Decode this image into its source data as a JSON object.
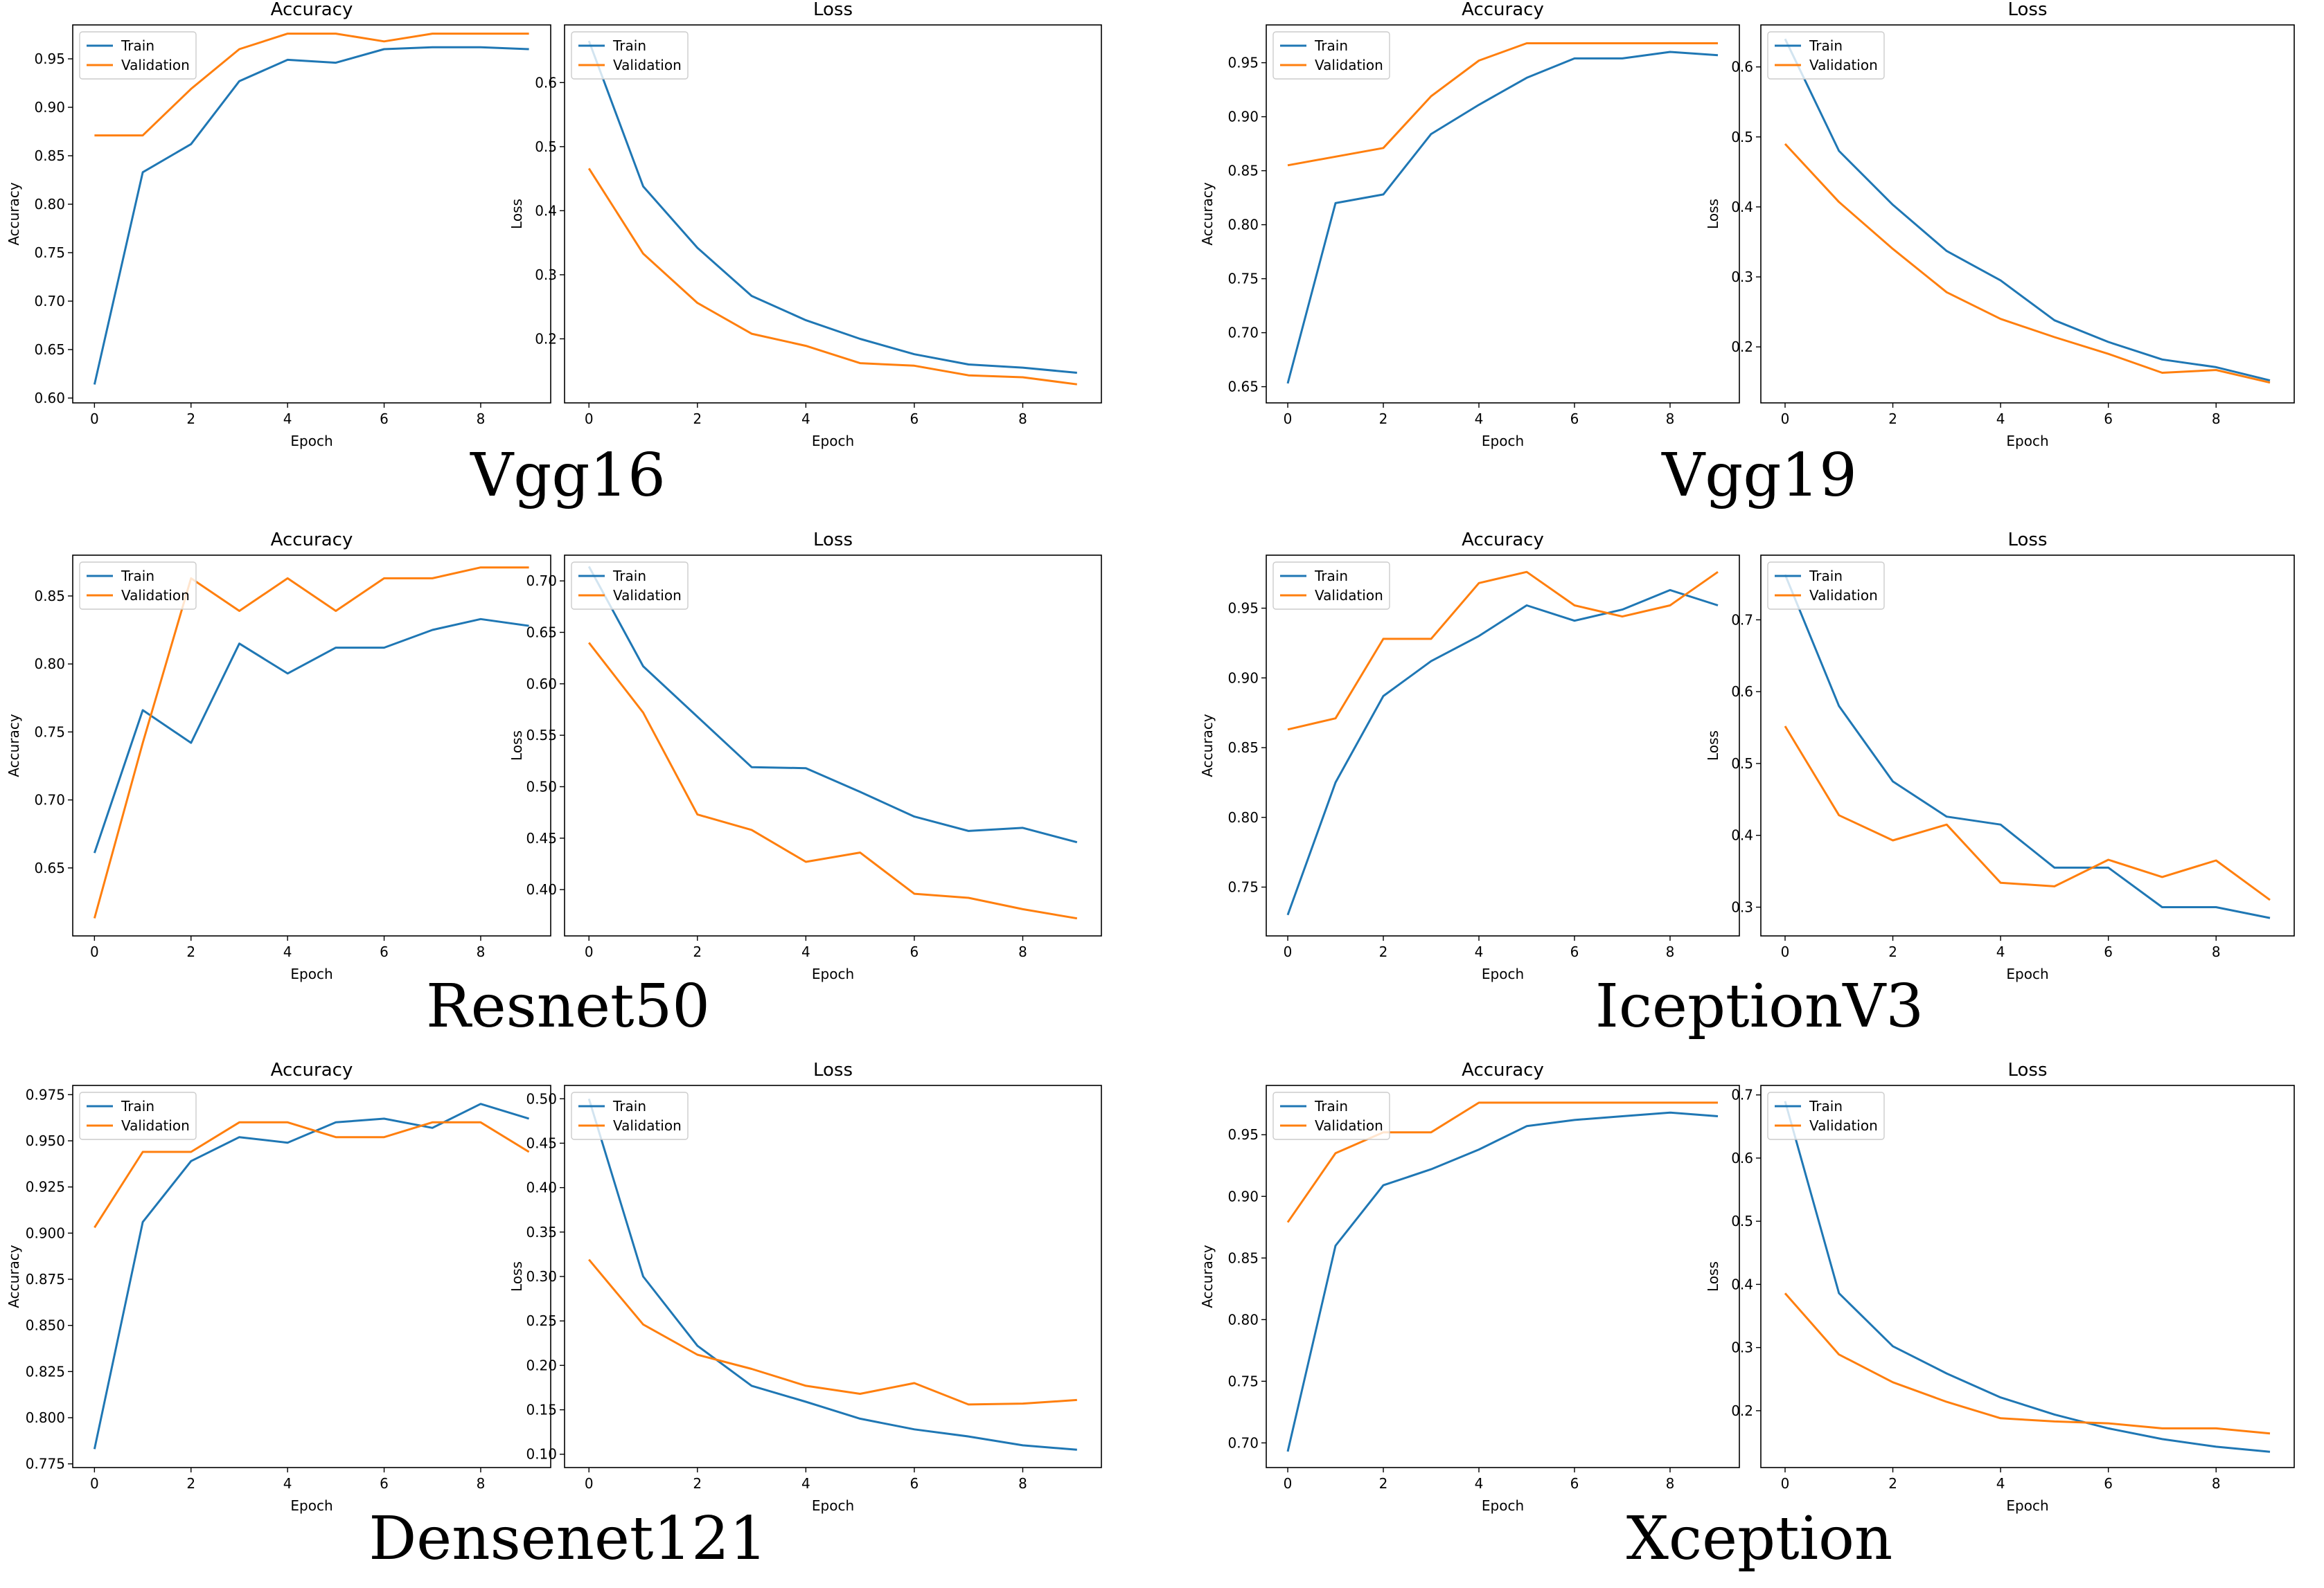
{
  "figure": {
    "model_names": [
      "Vgg16",
      "Vgg19",
      "Resnet50",
      "IceptionV3",
      "Densenet121",
      "Xception"
    ]
  },
  "chart_data": [
    {
      "type": "line",
      "model": "Vgg16",
      "title": "Accuracy",
      "xlabel": "Epoch",
      "ylabel": "Accuracy",
      "x": [
        0,
        1,
        2,
        3,
        4,
        5,
        6,
        7,
        8,
        9
      ],
      "xticks": [
        0,
        2,
        4,
        6,
        8
      ],
      "xtick_labels": [
        "0",
        "2",
        "4",
        "6",
        "8"
      ],
      "yticks": [
        0.6,
        0.65,
        0.7,
        0.75,
        0.8,
        0.85,
        0.9,
        0.95
      ],
      "ytick_labels": [
        "0.60",
        "0.65",
        "0.70",
        "0.75",
        "0.80",
        "0.85",
        "0.90",
        "0.95"
      ],
      "ylim": [
        0.595,
        0.985
      ],
      "legend_position": "top-left",
      "series": [
        {
          "name": "Train",
          "color": "#1f77b4",
          "values": [
            0.614,
            0.833,
            0.862,
            0.927,
            0.949,
            0.946,
            0.96,
            0.962,
            0.962,
            0.96
          ]
        },
        {
          "name": "Validation",
          "color": "#ff7f0e",
          "values": [
            0.871,
            0.871,
            0.919,
            0.96,
            0.976,
            0.976,
            0.968,
            0.976,
            0.976,
            0.976
          ]
        }
      ]
    },
    {
      "type": "line",
      "model": "Vgg16",
      "title": "Loss",
      "xlabel": "Epoch",
      "ylabel": "Loss",
      "x": [
        0,
        1,
        2,
        3,
        4,
        5,
        6,
        7,
        8,
        9
      ],
      "xticks": [
        0,
        2,
        4,
        6,
        8
      ],
      "xtick_labels": [
        "0",
        "2",
        "4",
        "6",
        "8"
      ],
      "yticks": [
        0.2,
        0.3,
        0.4,
        0.5,
        0.6
      ],
      "ytick_labels": [
        "0.2",
        "0.3",
        "0.4",
        "0.5",
        "0.6"
      ],
      "ylim": [
        0.1,
        0.69
      ],
      "legend_position": "top-left",
      "series": [
        {
          "name": "Train",
          "color": "#1f77b4",
          "values": [
            0.665,
            0.438,
            0.342,
            0.267,
            0.229,
            0.2,
            0.176,
            0.16,
            0.155,
            0.147
          ]
        },
        {
          "name": "Validation",
          "color": "#ff7f0e",
          "values": [
            0.466,
            0.333,
            0.256,
            0.208,
            0.189,
            0.162,
            0.158,
            0.143,
            0.14,
            0.129
          ]
        }
      ]
    },
    {
      "type": "line",
      "model": "Vgg19",
      "title": "Accuracy",
      "xlabel": "Epoch",
      "ylabel": "Accuracy",
      "x": [
        0,
        1,
        2,
        3,
        4,
        5,
        6,
        7,
        8,
        9
      ],
      "xticks": [
        0,
        2,
        4,
        6,
        8
      ],
      "xtick_labels": [
        "0",
        "2",
        "4",
        "6",
        "8"
      ],
      "yticks": [
        0.65,
        0.7,
        0.75,
        0.8,
        0.85,
        0.9,
        0.95
      ],
      "ytick_labels": [
        "0.65",
        "0.70",
        "0.75",
        "0.80",
        "0.85",
        "0.90",
        "0.95"
      ],
      "ylim": [
        0.635,
        0.985
      ],
      "legend_position": "top-left",
      "series": [
        {
          "name": "Train",
          "color": "#1f77b4",
          "values": [
            0.653,
            0.82,
            0.828,
            0.884,
            0.911,
            0.936,
            0.954,
            0.954,
            0.96,
            0.957
          ]
        },
        {
          "name": "Validation",
          "color": "#ff7f0e",
          "values": [
            0.855,
            0.863,
            0.871,
            0.919,
            0.952,
            0.968,
            0.968,
            0.968,
            0.968,
            0.968
          ]
        }
      ]
    },
    {
      "type": "line",
      "model": "Vgg19",
      "title": "Loss",
      "xlabel": "Epoch",
      "ylabel": "Loss",
      "x": [
        0,
        1,
        2,
        3,
        4,
        5,
        6,
        7,
        8,
        9
      ],
      "xticks": [
        0,
        2,
        4,
        6,
        8
      ],
      "xtick_labels": [
        "0",
        "2",
        "4",
        "6",
        "8"
      ],
      "yticks": [
        0.2,
        0.3,
        0.4,
        0.5,
        0.6
      ],
      "ytick_labels": [
        "0.2",
        "0.3",
        "0.4",
        "0.5",
        "0.6"
      ],
      "ylim": [
        0.12,
        0.66
      ],
      "legend_position": "top-left",
      "series": [
        {
          "name": "Train",
          "color": "#1f77b4",
          "values": [
            0.64,
            0.48,
            0.403,
            0.337,
            0.295,
            0.238,
            0.207,
            0.182,
            0.171,
            0.152
          ]
        },
        {
          "name": "Validation",
          "color": "#ff7f0e",
          "values": [
            0.49,
            0.407,
            0.34,
            0.278,
            0.24,
            0.214,
            0.19,
            0.163,
            0.167,
            0.149
          ]
        }
      ]
    },
    {
      "type": "line",
      "model": "Resnet50",
      "title": "Accuracy",
      "xlabel": "Epoch",
      "ylabel": "Accuracy",
      "x": [
        0,
        1,
        2,
        3,
        4,
        5,
        6,
        7,
        8,
        9
      ],
      "xticks": [
        0,
        2,
        4,
        6,
        8
      ],
      "xtick_labels": [
        "0",
        "2",
        "4",
        "6",
        "8"
      ],
      "yticks": [
        0.65,
        0.7,
        0.75,
        0.8,
        0.85
      ],
      "ytick_labels": [
        "0.65",
        "0.70",
        "0.75",
        "0.80",
        "0.85"
      ],
      "ylim": [
        0.6,
        0.88
      ],
      "legend_position": "top-left",
      "series": [
        {
          "name": "Train",
          "color": "#1f77b4",
          "values": [
            0.661,
            0.766,
            0.742,
            0.815,
            0.793,
            0.812,
            0.812,
            0.825,
            0.833,
            0.828
          ]
        },
        {
          "name": "Validation",
          "color": "#ff7f0e",
          "values": [
            0.613,
            0.742,
            0.863,
            0.839,
            0.863,
            0.839,
            0.863,
            0.863,
            0.871,
            0.871
          ]
        }
      ]
    },
    {
      "type": "line",
      "model": "Resnet50",
      "title": "Loss",
      "xlabel": "Epoch",
      "ylabel": "Loss",
      "x": [
        0,
        1,
        2,
        3,
        4,
        5,
        6,
        7,
        8,
        9
      ],
      "xticks": [
        0,
        2,
        4,
        6,
        8
      ],
      "xtick_labels": [
        "0",
        "2",
        "4",
        "6",
        "8"
      ],
      "yticks": [
        0.4,
        0.45,
        0.5,
        0.55,
        0.6,
        0.65,
        0.7
      ],
      "ytick_labels": [
        "0.40",
        "0.45",
        "0.50",
        "0.55",
        "0.60",
        "0.65",
        "0.70"
      ],
      "ylim": [
        0.355,
        0.725
      ],
      "legend_position": "top-left",
      "series": [
        {
          "name": "Train",
          "color": "#1f77b4",
          "values": [
            0.714,
            0.617,
            0.568,
            0.519,
            0.518,
            0.495,
            0.471,
            0.457,
            0.46,
            0.446
          ]
        },
        {
          "name": "Validation",
          "color": "#ff7f0e",
          "values": [
            0.64,
            0.572,
            0.473,
            0.458,
            0.427,
            0.436,
            0.396,
            0.392,
            0.381,
            0.372
          ]
        }
      ]
    },
    {
      "type": "line",
      "model": "IceptionV3",
      "title": "Accuracy",
      "xlabel": "Epoch",
      "ylabel": "Accuracy",
      "x": [
        0,
        1,
        2,
        3,
        4,
        5,
        6,
        7,
        8,
        9
      ],
      "xticks": [
        0,
        2,
        4,
        6,
        8
      ],
      "xtick_labels": [
        "0",
        "2",
        "4",
        "6",
        "8"
      ],
      "yticks": [
        0.75,
        0.8,
        0.85,
        0.9,
        0.95
      ],
      "ytick_labels": [
        "0.75",
        "0.80",
        "0.85",
        "0.90",
        "0.95"
      ],
      "ylim": [
        0.715,
        0.988
      ],
      "legend_position": "top-left",
      "series": [
        {
          "name": "Train",
          "color": "#1f77b4",
          "values": [
            0.73,
            0.825,
            0.887,
            0.912,
            0.93,
            0.952,
            0.941,
            0.949,
            0.963,
            0.952
          ]
        },
        {
          "name": "Validation",
          "color": "#ff7f0e",
          "values": [
            0.863,
            0.871,
            0.928,
            0.928,
            0.968,
            0.976,
            0.952,
            0.944,
            0.952,
            0.976
          ]
        }
      ]
    },
    {
      "type": "line",
      "model": "IceptionV3",
      "title": "Loss",
      "xlabel": "Epoch",
      "ylabel": "Loss",
      "x": [
        0,
        1,
        2,
        3,
        4,
        5,
        6,
        7,
        8,
        9
      ],
      "xticks": [
        0,
        2,
        4,
        6,
        8
      ],
      "xtick_labels": [
        "0",
        "2",
        "4",
        "6",
        "8"
      ],
      "yticks": [
        0.3,
        0.4,
        0.5,
        0.6,
        0.7
      ],
      "ytick_labels": [
        "0.3",
        "0.4",
        "0.5",
        "0.6",
        "0.7"
      ],
      "ylim": [
        0.26,
        0.79
      ],
      "legend_position": "top-left",
      "series": [
        {
          "name": "Train",
          "color": "#1f77b4",
          "values": [
            0.763,
            0.58,
            0.475,
            0.426,
            0.415,
            0.355,
            0.355,
            0.3,
            0.3,
            0.285
          ]
        },
        {
          "name": "Validation",
          "color": "#ff7f0e",
          "values": [
            0.552,
            0.428,
            0.393,
            0.415,
            0.334,
            0.329,
            0.366,
            0.342,
            0.365,
            0.31
          ]
        }
      ]
    },
    {
      "type": "line",
      "model": "Densenet121",
      "title": "Accuracy",
      "xlabel": "Epoch",
      "ylabel": "Accuracy",
      "x": [
        0,
        1,
        2,
        3,
        4,
        5,
        6,
        7,
        8,
        9
      ],
      "xticks": [
        0,
        2,
        4,
        6,
        8
      ],
      "xtick_labels": [
        "0",
        "2",
        "4",
        "6",
        "8"
      ],
      "yticks": [
        0.775,
        0.8,
        0.825,
        0.85,
        0.875,
        0.9,
        0.925,
        0.95,
        0.975
      ],
      "ytick_labels": [
        "0.775",
        "0.800",
        "0.825",
        "0.850",
        "0.875",
        "0.900",
        "0.925",
        "0.950",
        "0.975"
      ],
      "ylim": [
        0.773,
        0.98
      ],
      "legend_position": "top-left",
      "series": [
        {
          "name": "Train",
          "color": "#1f77b4",
          "values": [
            0.783,
            0.906,
            0.939,
            0.952,
            0.949,
            0.96,
            0.962,
            0.957,
            0.97,
            0.962
          ]
        },
        {
          "name": "Validation",
          "color": "#ff7f0e",
          "values": [
            0.903,
            0.944,
            0.944,
            0.96,
            0.96,
            0.952,
            0.952,
            0.96,
            0.96,
            0.944
          ]
        }
      ]
    },
    {
      "type": "line",
      "model": "Densenet121",
      "title": "Loss",
      "xlabel": "Epoch",
      "ylabel": "Loss",
      "x": [
        0,
        1,
        2,
        3,
        4,
        5,
        6,
        7,
        8,
        9
      ],
      "xticks": [
        0,
        2,
        4,
        6,
        8
      ],
      "xtick_labels": [
        "0",
        "2",
        "4",
        "6",
        "8"
      ],
      "yticks": [
        0.1,
        0.15,
        0.2,
        0.25,
        0.3,
        0.35,
        0.4,
        0.45,
        0.5
      ],
      "ytick_labels": [
        "0.10",
        "0.15",
        "0.20",
        "0.25",
        "0.30",
        "0.35",
        "0.40",
        "0.45",
        "0.50"
      ],
      "ylim": [
        0.085,
        0.515
      ],
      "legend_position": "top-left",
      "series": [
        {
          "name": "Train",
          "color": "#1f77b4",
          "values": [
            0.5,
            0.3,
            0.222,
            0.177,
            0.159,
            0.14,
            0.128,
            0.12,
            0.11,
            0.105
          ]
        },
        {
          "name": "Validation",
          "color": "#ff7f0e",
          "values": [
            0.319,
            0.246,
            0.212,
            0.196,
            0.177,
            0.168,
            0.18,
            0.156,
            0.157,
            0.161
          ]
        }
      ]
    },
    {
      "type": "line",
      "model": "Xception",
      "title": "Accuracy",
      "xlabel": "Epoch",
      "ylabel": "Accuracy",
      "x": [
        0,
        1,
        2,
        3,
        4,
        5,
        6,
        7,
        8,
        9
      ],
      "xticks": [
        0,
        2,
        4,
        6,
        8
      ],
      "xtick_labels": [
        "0",
        "2",
        "4",
        "6",
        "8"
      ],
      "yticks": [
        0.7,
        0.75,
        0.8,
        0.85,
        0.9,
        0.95
      ],
      "ytick_labels": [
        "0.70",
        "0.75",
        "0.80",
        "0.85",
        "0.90",
        "0.95"
      ],
      "ylim": [
        0.68,
        0.99
      ],
      "legend_position": "top-left",
      "series": [
        {
          "name": "Train",
          "color": "#1f77b4",
          "values": [
            0.693,
            0.86,
            0.909,
            0.922,
            0.938,
            0.957,
            0.962,
            0.965,
            0.968,
            0.965
          ]
        },
        {
          "name": "Validation",
          "color": "#ff7f0e",
          "values": [
            0.879,
            0.935,
            0.952,
            0.952,
            0.976,
            0.976,
            0.976,
            0.976,
            0.976,
            0.976
          ]
        }
      ]
    },
    {
      "type": "line",
      "model": "Xception",
      "title": "Loss",
      "xlabel": "Epoch",
      "ylabel": "Loss",
      "x": [
        0,
        1,
        2,
        3,
        4,
        5,
        6,
        7,
        8,
        9
      ],
      "xticks": [
        0,
        2,
        4,
        6,
        8
      ],
      "xtick_labels": [
        "0",
        "2",
        "4",
        "6",
        "8"
      ],
      "yticks": [
        0.2,
        0.3,
        0.4,
        0.5,
        0.6,
        0.7
      ],
      "ytick_labels": [
        "0.2",
        "0.3",
        "0.4",
        "0.5",
        "0.6",
        "0.7"
      ],
      "ylim": [
        0.11,
        0.715
      ],
      "legend_position": "top-left",
      "series": [
        {
          "name": "Train",
          "color": "#1f77b4",
          "values": [
            0.69,
            0.386,
            0.302,
            0.259,
            0.221,
            0.194,
            0.172,
            0.155,
            0.143,
            0.135
          ]
        },
        {
          "name": "Validation",
          "color": "#ff7f0e",
          "values": [
            0.386,
            0.289,
            0.245,
            0.214,
            0.188,
            0.183,
            0.18,
            0.172,
            0.172,
            0.164
          ]
        }
      ]
    }
  ]
}
